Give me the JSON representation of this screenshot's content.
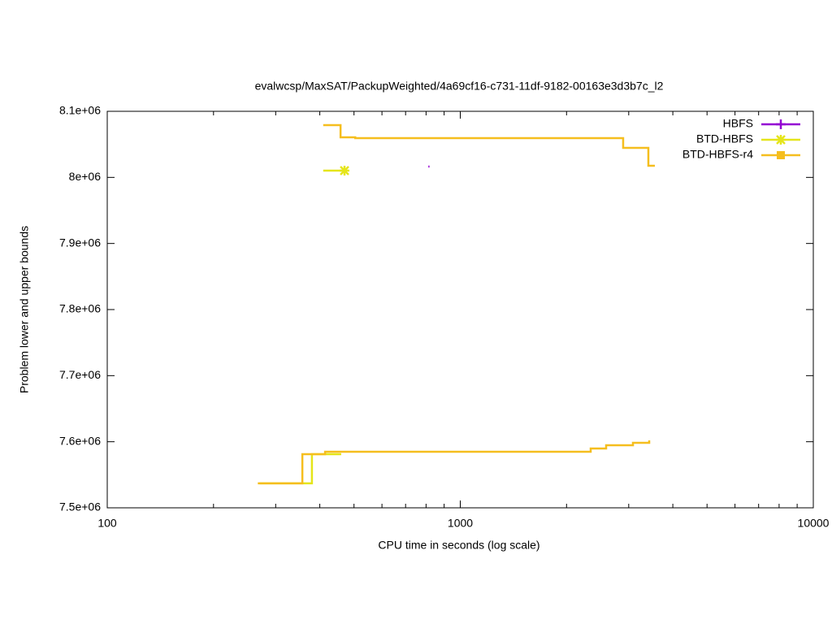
{
  "chart_data": {
    "type": "step",
    "title": "evalwcsp/MaxSAT/PackupWeighted/4a69cf16-c731-11df-9182-00163e3d3b7c_l2",
    "x_label": "CPU time in seconds (log scale)",
    "y_label": "Problem lower and upper bounds",
    "xlog": true,
    "xlim": [
      100,
      10000
    ],
    "xticks": [
      100,
      1000,
      10000
    ],
    "xminor": [
      200,
      300,
      400,
      500,
      600,
      700,
      800,
      900,
      2000,
      3000,
      4000,
      5000,
      6000,
      7000,
      8000,
      9000
    ],
    "ylim": [
      7500000,
      8100000
    ],
    "yticks": [
      {
        "value": 7500000,
        "label": "7.5e+06"
      },
      {
        "value": 7600000,
        "label": "7.6e+06"
      },
      {
        "value": 7700000,
        "label": "7.7e+06"
      },
      {
        "value": 7800000,
        "label": "7.8e+06"
      },
      {
        "value": 7900000,
        "label": "7.9e+06"
      },
      {
        "value": 8000000,
        "label": "8e+06"
      },
      {
        "value": 8100000,
        "label": "8.1e+06"
      }
    ],
    "legend": "top-right",
    "series": [
      {
        "name": "HBFS",
        "color": "#9400d3",
        "marker": "plus",
        "upper": {
          "x": [
            812,
            818
          ],
          "values": [
            8016400,
            8016400
          ]
        }
      },
      {
        "name": "BTD-HBFS",
        "color": "#e5e51a",
        "marker": "star",
        "point_at_end": true,
        "upper": {
          "x": [
            409,
            470
          ],
          "values": [
            8010200,
            8010200
          ]
        },
        "lower": {
          "x": [
            270,
            380,
            460
          ],
          "values": [
            7537000,
            7581100,
            7581100
          ]
        }
      },
      {
        "name": "BTD-HBFS-r4",
        "color": "#f5be1e",
        "marker": "square",
        "upper": {
          "x": [
            409,
            458,
            504,
            2893,
            3410,
            3558
          ],
          "values": [
            8079100,
            8060700,
            8059400,
            8044700,
            8017600,
            8017600
          ]
        },
        "lower": {
          "x": [
            267,
            357,
            414,
            2341,
            2589,
            3084,
            3429
          ],
          "values": [
            7537000,
            7581100,
            7584800,
            7589800,
            7594700,
            7598400,
            7602100
          ]
        }
      }
    ]
  }
}
